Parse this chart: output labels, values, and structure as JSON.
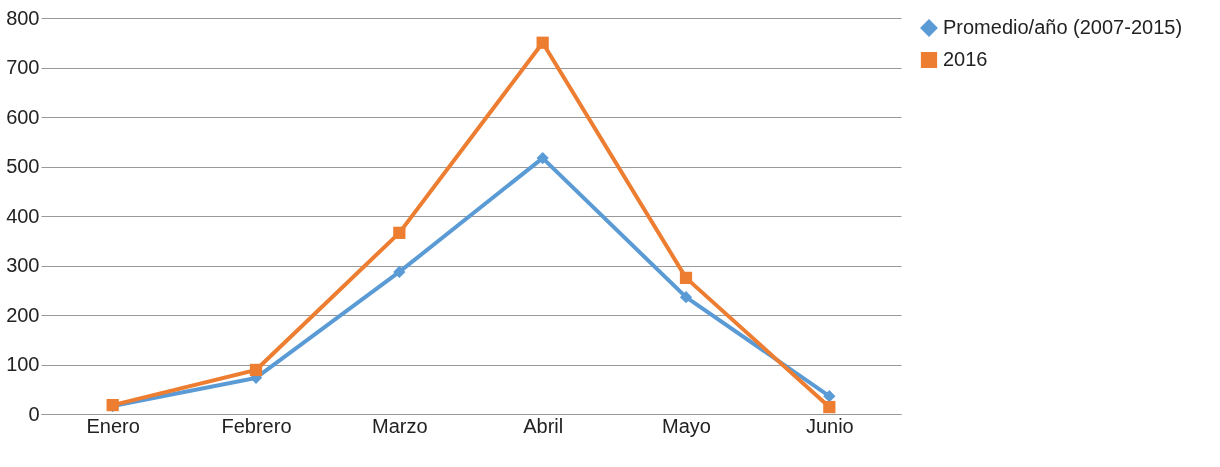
{
  "chart_data": {
    "type": "line",
    "categories": [
      "Enero",
      "Febrero",
      "Marzo",
      "Abril",
      "Mayo",
      "Junio"
    ],
    "series": [
      {
        "name": "Promedio/año (2007-2015)",
        "color": "#5b9bd5",
        "marker": "diamond",
        "values": [
          16,
          73,
          287,
          517,
          236,
          36
        ]
      },
      {
        "name": "2016",
        "color": "#ed7d31",
        "marker": "square",
        "values": [
          18,
          89,
          366,
          750,
          275,
          14
        ]
      }
    ],
    "ylim": [
      0,
      800
    ],
    "yticks": [
      0,
      100,
      200,
      300,
      400,
      500,
      600,
      700,
      800
    ],
    "grid": "y",
    "legend": "right",
    "line_style": "solid"
  }
}
